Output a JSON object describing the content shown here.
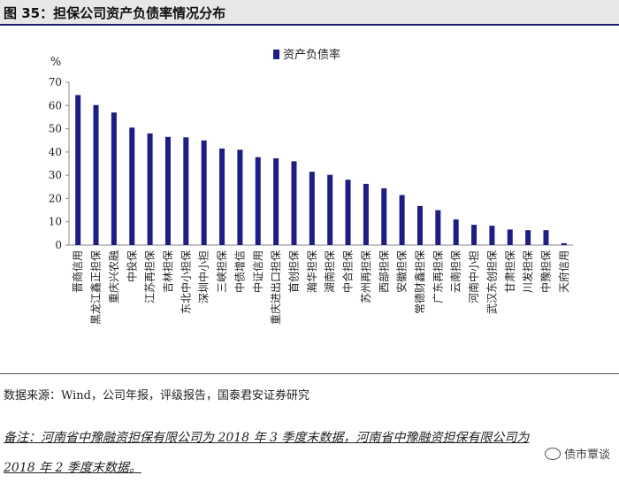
{
  "header": {
    "title": "图 35：担保公司资产负债率情况分布"
  },
  "chart_data": {
    "type": "bar",
    "ylabel": "%",
    "ylim": [
      0,
      70
    ],
    "yticks": [
      0,
      10,
      20,
      30,
      40,
      50,
      60,
      70
    ],
    "grid": false,
    "legend_position": "top-center",
    "bar_color": "#1c1c8a",
    "series": [
      {
        "name": "资产负债率",
        "values": [
          64.5,
          60.2,
          57.0,
          50.5,
          48.0,
          46.5,
          46.3,
          45.0,
          41.5,
          41.0,
          37.8,
          37.3,
          36.0,
          31.5,
          30.2,
          28.1,
          26.3,
          24.4,
          21.5,
          16.8,
          15.0,
          11.0,
          8.7,
          8.3,
          6.7,
          6.4,
          6.4,
          0.8
        ]
      }
    ],
    "categories": [
      "晋商信用",
      "黑龙江鑫正担保",
      "重庆兴农融",
      "中投保",
      "江苏再担保",
      "吉林担保",
      "东北中小担保",
      "深圳中小担",
      "三峡担保",
      "中债增信",
      "中证信用",
      "重庆进出口担保",
      "首创担保",
      "瀚华担保",
      "湖南担保",
      "中合担保",
      "苏州再担保",
      "西部担保",
      "安徽担保",
      "常德财鑫担保",
      "广东再担保",
      "云南担保",
      "河南中小担",
      "武汉东创担保",
      "甘肃担保",
      "川发担保",
      "中豫担保",
      "天府信用"
    ]
  },
  "footer": {
    "source": "数据来源：Wind，公司年报，评级报告，国泰君安证券研究",
    "note_line1": "备注：河南省中豫融资担保有限公司为 2018 年 3 季度末数据，河南省中豫融资担保有限公司为",
    "note_line2": "2018 年 2 季度末数据。",
    "watermark": "债市覃谈"
  }
}
